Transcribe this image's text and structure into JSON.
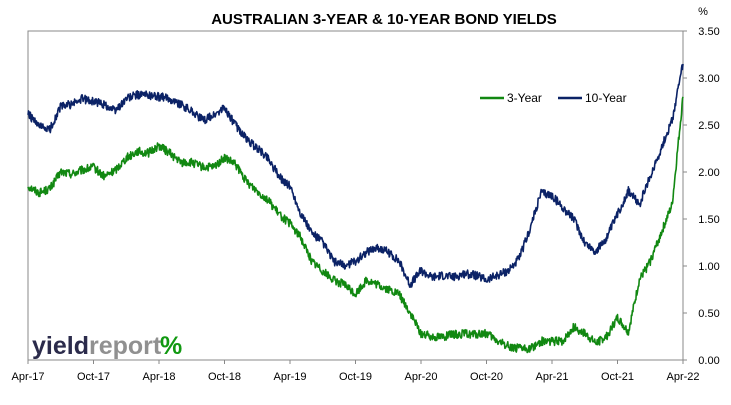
{
  "chart_data": {
    "type": "line",
    "title": "AUSTRALIAN 3-YEAR & 10-YEAR BOND YIELDS",
    "ylabel": "%",
    "ylim": [
      0,
      3.5
    ],
    "y_ticks": [
      "0.00",
      "0.50",
      "1.00",
      "1.50",
      "2.00",
      "2.50",
      "3.00",
      "3.50"
    ],
    "x_ticks": [
      "Apr-17",
      "Oct-17",
      "Apr-18",
      "Oct-18",
      "Apr-19",
      "Oct-19",
      "Apr-20",
      "Oct-20",
      "Apr-21",
      "Oct-21",
      "Apr-22"
    ],
    "legend_position": "top-right",
    "series": [
      {
        "name": "3-Year",
        "color": "#118811",
        "x": [
          "2017-04",
          "2017-05",
          "2017-06",
          "2017-07",
          "2017-08",
          "2017-09",
          "2017-10",
          "2017-11",
          "2017-12",
          "2018-01",
          "2018-02",
          "2018-03",
          "2018-04",
          "2018-05",
          "2018-06",
          "2018-07",
          "2018-08",
          "2018-09",
          "2018-10",
          "2018-11",
          "2018-12",
          "2019-01",
          "2019-02",
          "2019-03",
          "2019-04",
          "2019-05",
          "2019-06",
          "2019-07",
          "2019-08",
          "2019-09",
          "2019-10",
          "2019-11",
          "2019-12",
          "2020-01",
          "2020-02",
          "2020-03",
          "2020-04",
          "2020-05",
          "2020-06",
          "2020-07",
          "2020-08",
          "2020-09",
          "2020-10",
          "2020-11",
          "2020-12",
          "2021-01",
          "2021-02",
          "2021-03",
          "2021-04",
          "2021-05",
          "2021-06",
          "2021-07",
          "2021-08",
          "2021-09",
          "2021-10",
          "2021-11",
          "2021-12",
          "2022-01",
          "2022-02",
          "2022-03",
          "2022-04"
        ],
        "values": [
          1.85,
          1.78,
          1.82,
          2.0,
          1.98,
          2.02,
          2.05,
          1.95,
          2.02,
          2.15,
          2.22,
          2.2,
          2.28,
          2.2,
          2.1,
          2.1,
          2.05,
          2.05,
          2.15,
          2.08,
          1.9,
          1.8,
          1.7,
          1.55,
          1.45,
          1.3,
          1.05,
          0.95,
          0.85,
          0.8,
          0.7,
          0.85,
          0.8,
          0.75,
          0.7,
          0.5,
          0.28,
          0.25,
          0.25,
          0.27,
          0.28,
          0.27,
          0.28,
          0.2,
          0.15,
          0.12,
          0.12,
          0.2,
          0.2,
          0.2,
          0.35,
          0.28,
          0.18,
          0.25,
          0.45,
          0.3,
          0.85,
          1.05,
          1.35,
          1.65,
          2.8
        ]
      },
      {
        "name": "10-Year",
        "color": "#0b2266",
        "x": [
          "2017-04",
          "2017-05",
          "2017-06",
          "2017-07",
          "2017-08",
          "2017-09",
          "2017-10",
          "2017-11",
          "2017-12",
          "2018-01",
          "2018-02",
          "2018-03",
          "2018-04",
          "2018-05",
          "2018-06",
          "2018-07",
          "2018-08",
          "2018-09",
          "2018-10",
          "2018-11",
          "2018-12",
          "2019-01",
          "2019-02",
          "2019-03",
          "2019-04",
          "2019-05",
          "2019-06",
          "2019-07",
          "2019-08",
          "2019-09",
          "2019-10",
          "2019-11",
          "2019-12",
          "2020-01",
          "2020-02",
          "2020-03",
          "2020-04",
          "2020-05",
          "2020-06",
          "2020-07",
          "2020-08",
          "2020-09",
          "2020-10",
          "2020-11",
          "2020-12",
          "2021-01",
          "2021-02",
          "2021-03",
          "2021-04",
          "2021-05",
          "2021-06",
          "2021-07",
          "2021-08",
          "2021-09",
          "2021-10",
          "2021-11",
          "2021-12",
          "2022-01",
          "2022-02",
          "2022-03",
          "2022-04"
        ],
        "values": [
          2.62,
          2.48,
          2.45,
          2.7,
          2.72,
          2.78,
          2.75,
          2.72,
          2.65,
          2.78,
          2.82,
          2.82,
          2.8,
          2.78,
          2.72,
          2.65,
          2.55,
          2.6,
          2.68,
          2.5,
          2.35,
          2.25,
          2.15,
          1.95,
          1.85,
          1.55,
          1.35,
          1.25,
          1.05,
          1.0,
          1.05,
          1.15,
          1.2,
          1.15,
          1.05,
          0.8,
          0.95,
          0.88,
          0.9,
          0.88,
          0.92,
          0.9,
          0.85,
          0.9,
          0.95,
          1.08,
          1.4,
          1.78,
          1.75,
          1.62,
          1.5,
          1.25,
          1.15,
          1.3,
          1.55,
          1.8,
          1.65,
          1.95,
          2.25,
          2.55,
          3.15
        ]
      }
    ]
  },
  "branding": {
    "word_1": "yield",
    "word_2": "report",
    "symbol": "%",
    "colors": {
      "dark": "#2b2b4b",
      "grey": "#909090",
      "green": "#119911",
      "red": "#cc0000"
    }
  }
}
